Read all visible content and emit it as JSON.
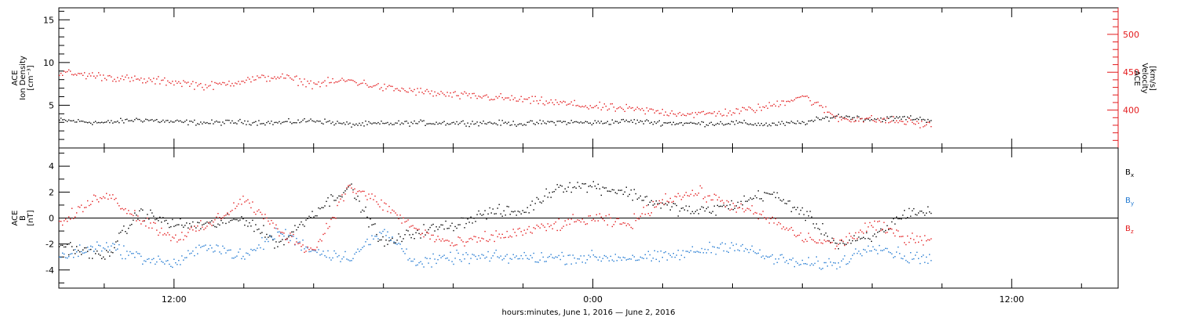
{
  "xlabel": "hours:minutes, June  1, 2016 — June  2, 2016",
  "colors": {
    "black": "#000000",
    "red": "#e31a1c",
    "blue": "#1f78d1"
  },
  "chart_data": [
    {
      "type": "scatter",
      "panel": "top",
      "x_range_hours": [
        -15.3,
        15.05
      ],
      "x_ticks": [
        {
          "hours": -12,
          "label": "12:00"
        },
        {
          "hours": 0,
          "label": "0:00"
        },
        {
          "hours": 12,
          "label": "12:00"
        }
      ],
      "ylabel_lines": [
        "ACE",
        "Ion Density",
        "[cm⁻³]"
      ],
      "ylim": [
        0,
        16.4
      ],
      "yticks": [
        5,
        10,
        15
      ],
      "y2label_lines": [
        "ACE",
        "Velocity",
        "[km/s]"
      ],
      "y2lim": [
        350,
        535
      ],
      "y2ticks": [
        400,
        450,
        500
      ],
      "series": [
        {
          "axis": "left",
          "color": "#000000",
          "x": [
            -15.3,
            -14.0,
            -13.0,
            -12.0,
            -11.0,
            -10.0,
            -9.0,
            -8.0,
            -7.0,
            -6.0,
            -5.0,
            -4.0,
            -3.0,
            -2.0,
            -1.0,
            0.0,
            1.0,
            2.0,
            3.0,
            4.0,
            5.0,
            6.0,
            7.0,
            8.0,
            9.0,
            9.7
          ],
          "y": [
            3.3,
            3.0,
            3.4,
            3.1,
            3.0,
            3.1,
            3.0,
            3.3,
            2.8,
            2.9,
            3.0,
            3.0,
            3.0,
            2.9,
            3.1,
            3.0,
            3.2,
            3.0,
            2.9,
            3.0,
            2.8,
            3.0,
            3.8,
            3.4,
            3.6,
            3.3
          ]
        },
        {
          "axis": "right",
          "color": "#e31a1c",
          "x": [
            -15.3,
            -14.0,
            -13.0,
            -12.0,
            -11.0,
            -10.0,
            -9.0,
            -8.0,
            -7.0,
            -6.0,
            -5.0,
            -4.0,
            -3.0,
            -2.0,
            -1.0,
            0.0,
            1.0,
            2.0,
            3.0,
            4.0,
            5.0,
            6.0,
            7.0,
            8.0,
            9.0,
            9.7
          ],
          "y": [
            450,
            445,
            440,
            438,
            432,
            440,
            445,
            435,
            440,
            430,
            425,
            420,
            418,
            414,
            410,
            405,
            402,
            398,
            395,
            398,
            405,
            420,
            390,
            388,
            385,
            380
          ]
        }
      ]
    },
    {
      "type": "scatter",
      "panel": "bottom",
      "x_range_hours": [
        -15.3,
        15.05
      ],
      "x_ticks": [
        {
          "hours": -12,
          "label": "12:00"
        },
        {
          "hours": 0,
          "label": "0:00"
        },
        {
          "hours": 12,
          "label": "12:00"
        }
      ],
      "ylabel_lines": [
        "ACE",
        "B",
        "[nT]"
      ],
      "ylim": [
        -5.4,
        5.4
      ],
      "yticks": [
        -4,
        -2,
        0,
        2,
        4
      ],
      "zero_line": true,
      "legend": [
        {
          "label": "B",
          "sub": "x",
          "color": "#000000"
        },
        {
          "label": "B",
          "sub": "y",
          "color": "#1f78d1"
        },
        {
          "label": "B",
          "sub": "z",
          "color": "#e31a1c"
        }
      ],
      "series": [
        {
          "name": "Bx",
          "color": "#000000",
          "x": [
            -15.3,
            -14.0,
            -13.0,
            -12.0,
            -11.0,
            -10.0,
            -9.0,
            -8.0,
            -7.0,
            -6.0,
            -5.0,
            -4.0,
            -3.0,
            -2.0,
            -1.0,
            0.0,
            1.0,
            2.0,
            3.0,
            4.0,
            5.0,
            6.0,
            7.0,
            8.0,
            9.0,
            9.7
          ],
          "y": [
            -2.0,
            -3.0,
            0.5,
            -0.5,
            -0.5,
            0.0,
            -2.0,
            0.5,
            2.5,
            -2.0,
            -1.0,
            -0.5,
            0.5,
            0.5,
            2.5,
            2.5,
            2.0,
            1.0,
            0.5,
            1.0,
            2.0,
            0.5,
            -2.0,
            -1.5,
            0.5,
            0.5
          ]
        },
        {
          "name": "By",
          "color": "#1f78d1",
          "x": [
            -15.3,
            -14.0,
            -13.0,
            -12.0,
            -11.0,
            -10.0,
            -9.0,
            -8.0,
            -7.0,
            -6.0,
            -5.0,
            -4.0,
            -3.0,
            -2.0,
            -1.0,
            0.0,
            1.0,
            2.0,
            3.0,
            4.0,
            5.0,
            6.0,
            7.0,
            8.0,
            9.0,
            9.7
          ],
          "y": [
            -3.0,
            -2.0,
            -3.0,
            -3.5,
            -2.0,
            -3.0,
            -1.0,
            -2.5,
            -3.0,
            -1.0,
            -3.5,
            -3.0,
            -3.0,
            -3.0,
            -3.0,
            -3.0,
            -3.0,
            -3.0,
            -2.5,
            -2.0,
            -3.0,
            -3.5,
            -3.5,
            -2.0,
            -3.0,
            -3.0
          ]
        },
        {
          "name": "Bz",
          "color": "#e31a1c",
          "x": [
            -15.3,
            -14.0,
            -13.0,
            -12.0,
            -11.0,
            -10.0,
            -9.0,
            -8.0,
            -7.0,
            -6.0,
            -5.0,
            -4.0,
            -3.0,
            -2.0,
            -1.0,
            0.0,
            1.0,
            2.0,
            3.0,
            4.0,
            5.0,
            6.0,
            7.0,
            8.0,
            9.0,
            9.7
          ],
          "y": [
            -0.5,
            2.0,
            0.0,
            -1.5,
            -0.5,
            1.5,
            -1.0,
            -2.5,
            2.5,
            1.0,
            -1.0,
            -2.0,
            -1.5,
            -1.0,
            -0.5,
            0.0,
            -0.5,
            1.5,
            2.0,
            1.0,
            0.0,
            -1.5,
            -2.0,
            -0.5,
            -1.5,
            -1.5
          ]
        }
      ]
    }
  ]
}
